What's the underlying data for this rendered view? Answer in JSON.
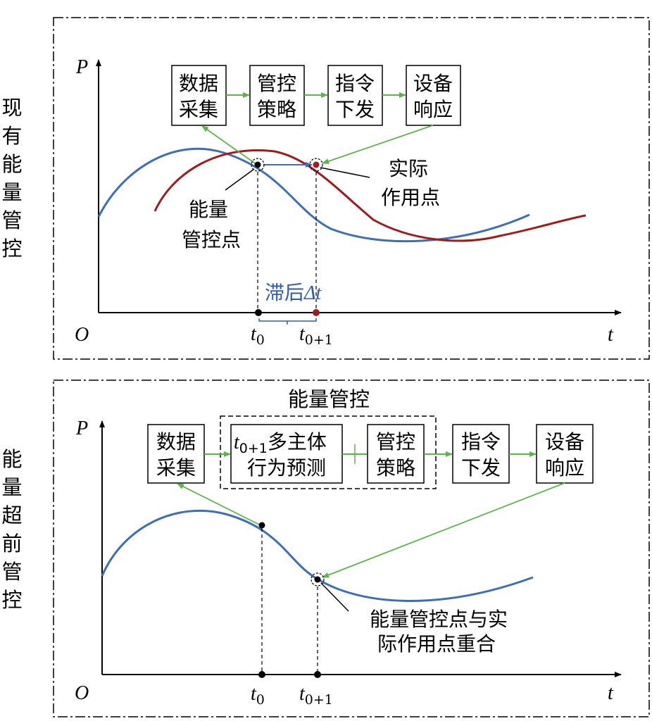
{
  "panel1": {
    "side_label": [
      "现",
      "有",
      "能",
      "量",
      "管",
      "控"
    ],
    "y_axis_label": "P",
    "x_axis_label": "t",
    "origin_label": "O",
    "boxes": [
      {
        "line1": "数据",
        "line2": "采集"
      },
      {
        "line1": "管控",
        "line2": "策略"
      },
      {
        "line1": "指令",
        "line2": "下发"
      },
      {
        "line1": "设备",
        "line2": "响应"
      }
    ],
    "control_point_label": [
      "能量",
      "管控点"
    ],
    "actual_point_label": [
      "实际",
      "作用点"
    ],
    "lag_label": "滞后",
    "lag_symbol": "Δt",
    "t0_label": {
      "base": "t",
      "sub": "0"
    },
    "t1_label": {
      "base": "t",
      "sub": "0+1"
    },
    "colors": {
      "blue_curve": "#3c6fb5",
      "red_curve": "#a01c1c",
      "arrow_green": "#5cb548",
      "lag_text": "#2e5ea7"
    }
  },
  "panel2": {
    "side_label": [
      "能",
      "量",
      "超",
      "前",
      "管",
      "控"
    ],
    "y_axis_label": "P",
    "x_axis_label": "t",
    "origin_label": "O",
    "group_title": "能量管控",
    "boxes": [
      {
        "line1": "数据",
        "line2": "采集"
      },
      {
        "line1_base": "t",
        "line1_sub": "0+1",
        "line1_rest": "多主体",
        "line2": "行为预测"
      },
      {
        "line1": "管控",
        "line2": "策略"
      },
      {
        "line1": "指令",
        "line2": "下发"
      },
      {
        "line1": "设备",
        "line2": "响应"
      }
    ],
    "overlap_label": [
      "能量管控点与实",
      "际作用点重合"
    ],
    "t0_label": {
      "base": "t",
      "sub": "0"
    },
    "t1_label": {
      "base": "t",
      "sub": "0+1"
    }
  }
}
